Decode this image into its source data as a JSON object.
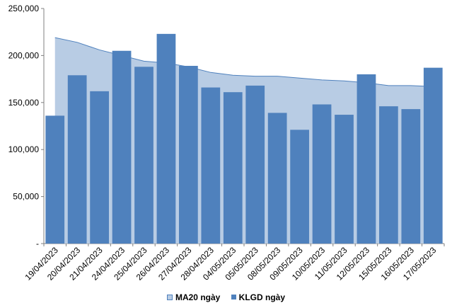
{
  "chart_data": {
    "type": "bar",
    "title": "",
    "xlabel": "",
    "ylabel": "",
    "ylim": [
      0,
      250000
    ],
    "y_ticks": [
      "-",
      "50,000",
      "100,000",
      "150,000",
      "200,000",
      "250,000"
    ],
    "y_tick_values": [
      0,
      50000,
      100000,
      150000,
      200000,
      250000
    ],
    "categories": [
      "19/04/2023",
      "20/04/2023",
      "21/04/2023",
      "24/04/2023",
      "25/04/2023",
      "26/04/2023",
      "27/04/2023",
      "28/04/2023",
      "04/05/2023",
      "05/05/2023",
      "08/05/2023",
      "09/05/2023",
      "10/05/2023",
      "11/05/2023",
      "12/05/2023",
      "15/05/2023",
      "16/05/2023",
      "17/05/2023"
    ],
    "series": [
      {
        "name": "MA20 ngày",
        "type": "area",
        "color": "#b8cce4",
        "values": [
          219000,
          214000,
          206000,
          200000,
          194000,
          192000,
          188000,
          182000,
          179000,
          178000,
          178000,
          176000,
          174000,
          173000,
          171000,
          168000,
          168000,
          167000
        ]
      },
      {
        "name": "KLGD ngày",
        "type": "bar",
        "color": "#4f81bd",
        "values": [
          136000,
          179000,
          162000,
          205000,
          188000,
          223000,
          189000,
          166000,
          161000,
          168000,
          139000,
          121000,
          148000,
          137000,
          180000,
          146000,
          143000,
          187000
        ]
      }
    ],
    "legend_position": "bottom"
  }
}
